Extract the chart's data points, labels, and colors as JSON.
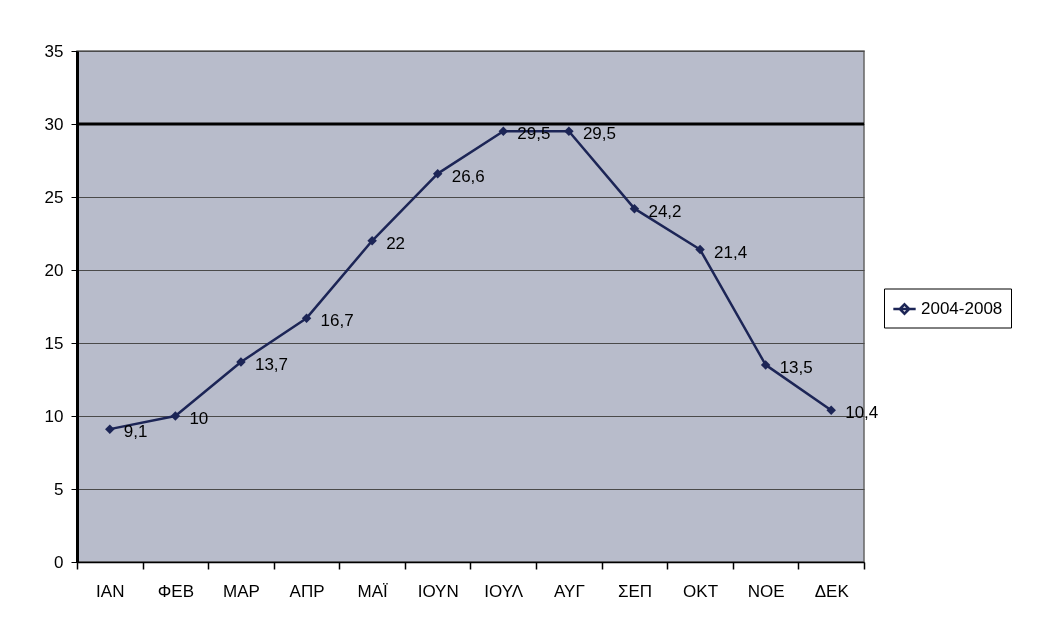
{
  "chart_data": {
    "type": "line",
    "categories": [
      "ΙΑΝ",
      "ΦΕΒ",
      "ΜΑΡ",
      "ΑΠΡ",
      "ΜΑΪ",
      "ΙΟΥΝ",
      "ΙΟΥΛ",
      "ΑΥΓ",
      "ΣΕΠ",
      "ΟΚΤ",
      "ΝΟΕ",
      "ΔΕΚ"
    ],
    "series": [
      {
        "name": "2004-2008",
        "color": "#1c2556",
        "values": [
          9.1,
          10,
          13.7,
          16.7,
          22,
          26.6,
          29.5,
          29.5,
          24.2,
          21.4,
          13.5,
          10.4
        ],
        "value_labels": [
          "9,1",
          "10",
          "13,7",
          "16,7",
          "22",
          "26,6",
          "29,5",
          "29,5",
          "24,2",
          "21,4",
          "13,5",
          "10,4"
        ]
      }
    ],
    "ylim": [
      0,
      35
    ],
    "yticks": [
      0,
      5,
      10,
      15,
      20,
      25,
      30,
      35
    ],
    "grid": "y",
    "legend": "right",
    "marker": "diamond",
    "line_style": "solid",
    "ref_lines": [
      {
        "axis": "y",
        "value": 30,
        "color": "#000000"
      }
    ]
  }
}
